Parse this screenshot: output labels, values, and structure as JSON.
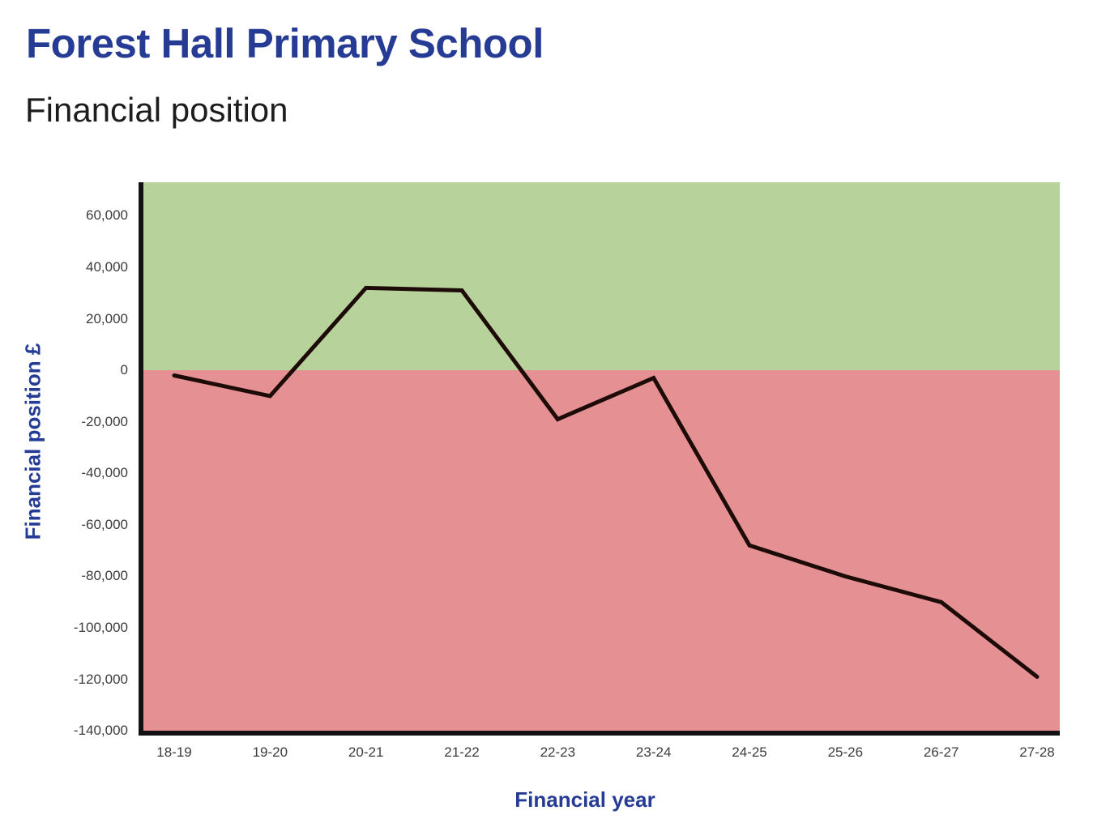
{
  "header": {
    "title": "Forest Hall Primary School",
    "subtitle": "Financial position"
  },
  "chart_data": {
    "type": "line",
    "title": "Forest Hall Primary School",
    "subtitle": "Financial position",
    "xlabel": "Financial year",
    "ylabel": "Financial position £",
    "categories": [
      "18-19",
      "19-20",
      "20-21",
      "21-22",
      "22-23",
      "23-24",
      "24-25",
      "25-26",
      "26-27",
      "27-28"
    ],
    "series": [
      {
        "name": "Financial position",
        "values": [
          -2000,
          -10000,
          32000,
          31000,
          -19000,
          -3000,
          -68000,
          -80000,
          -90000,
          -119000
        ]
      }
    ],
    "ylim": [
      -141500,
      73000
    ],
    "yticks": [
      60000,
      40000,
      20000,
      0,
      -20000,
      -40000,
      -60000,
      -80000,
      -100000,
      -120000,
      -140000
    ],
    "ytick_labels": [
      "60,000",
      "40,000",
      "20,000",
      "0",
      "-20,000",
      "-40,000",
      "-60,000",
      "-80,000",
      "-100,000",
      "-120,000",
      "-140,000"
    ],
    "grid": false,
    "legend": false,
    "zones": [
      {
        "name": "surplus-zone",
        "from": 0,
        "to": 73000,
        "color": "#b7d29b"
      },
      {
        "name": "deficit-zone",
        "from": -141500,
        "to": 0,
        "color": "#e59093"
      }
    ],
    "line_color": "#1c0b07",
    "axis_color": "#121212",
    "accent_color": "#263c94",
    "tick_color": "#3c3c3c"
  }
}
